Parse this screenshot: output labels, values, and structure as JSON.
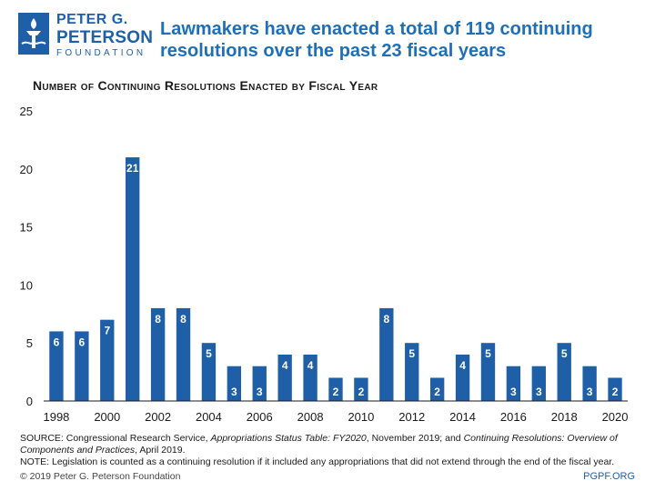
{
  "logo": {
    "line1": "PETER G.",
    "line2": "PETERSON",
    "line3": "FOUNDATION",
    "icon": "torch-icon",
    "color": "#1f5fa8"
  },
  "headline": "Lawmakers have enacted a total of 119 continuing resolutions over the past 23 fiscal years",
  "chart_data": {
    "type": "bar",
    "title": "Number of Continuing Resolutions Enacted by Fiscal Year",
    "xlabel": "",
    "ylabel": "",
    "categories": [
      "1998",
      "1999",
      "2000",
      "2001",
      "2002",
      "2003",
      "2004",
      "2005",
      "2006",
      "2007",
      "2008",
      "2009",
      "2010",
      "2011",
      "2012",
      "2013",
      "2014",
      "2015",
      "2016",
      "2017",
      "2018",
      "2019",
      "2020"
    ],
    "values": [
      6,
      6,
      7,
      21,
      8,
      8,
      5,
      3,
      3,
      4,
      4,
      2,
      2,
      8,
      5,
      2,
      4,
      5,
      3,
      3,
      5,
      3,
      2
    ],
    "x_tick_labels": [
      "1998",
      "2000",
      "2002",
      "2004",
      "2006",
      "2008",
      "2010",
      "2012",
      "2014",
      "2016",
      "2018",
      "2020"
    ],
    "y_ticks": [
      0,
      5,
      10,
      15,
      20,
      25
    ],
    "ylim": [
      0,
      25
    ],
    "bar_color": "#1f5fa8",
    "data_labels": "inside-top",
    "grid": false
  },
  "notes": {
    "source_prefix": "SOURCE: Congressional Research Service, ",
    "source_title1": "Appropriations Status Table: FY2020",
    "source_mid": ", November 2019; and ",
    "source_title2": "Continuing Resolutions: Overview of Components and Practices",
    "source_suffix": ", April 2019.",
    "note": "NOTE: Legislation is counted as a continuing resolution if it included any appropriations that did not extend through the end of the fiscal year."
  },
  "footer": {
    "copyright": "© 2019 Peter G. Peterson Foundation",
    "site": "PGPF.ORG"
  }
}
